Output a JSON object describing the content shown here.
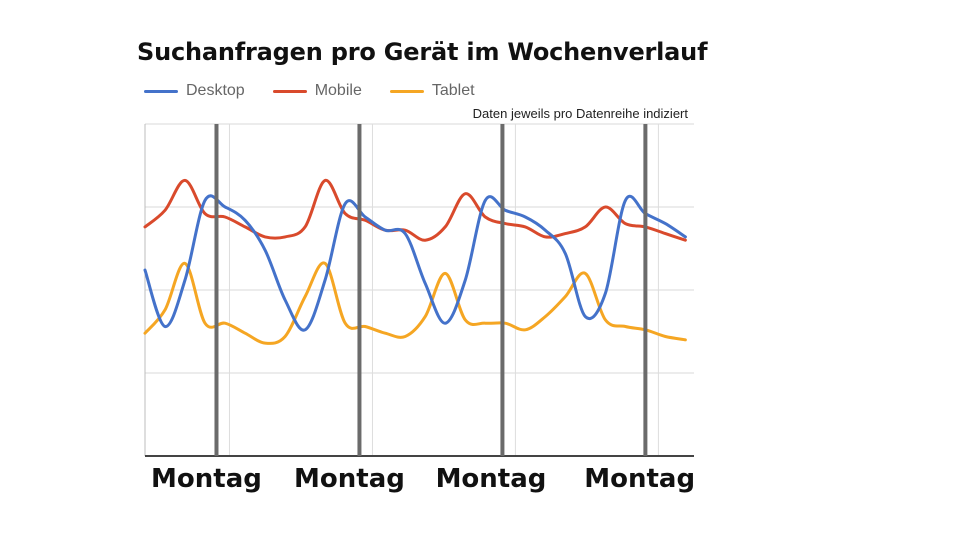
{
  "chart_data": {
    "type": "line",
    "title": "Suchanfragen pro Gerät im Wochenverlauf",
    "note": "Daten jeweils pro Datenreihe indiziert",
    "legend_position": "top-left",
    "grid": true,
    "ylim": [
      0,
      100
    ],
    "week_markers": [
      1.0,
      2.0,
      3.0,
      4.0
    ],
    "x_tick_labels": [
      {
        "x": 0.93,
        "label": "Montag"
      },
      {
        "x": 1.93,
        "label": "Montag"
      },
      {
        "x": 2.92,
        "label": "Montag"
      },
      {
        "x": 3.96,
        "label": "Montag"
      }
    ],
    "x": [
      0.5,
      0.64,
      0.78,
      0.92,
      1.06,
      1.2,
      1.34,
      1.48,
      1.62,
      1.76,
      1.9,
      2.04,
      2.18,
      2.32,
      2.46,
      2.6,
      2.74,
      2.88,
      3.02,
      3.16,
      3.3,
      3.44,
      3.58,
      3.72,
      3.86,
      4.0,
      4.14,
      4.28,
      4.42,
      4.56,
      4.34
    ],
    "series": [
      {
        "name": "Desktop",
        "color": "#4472CA",
        "values": [
          56,
          39,
          53,
          77,
          75,
          71,
          62,
          47,
          38,
          53,
          76,
          72,
          68,
          67,
          52,
          40,
          53,
          77,
          74,
          72,
          68,
          61,
          42,
          49,
          77,
          73,
          70,
          66,
          66,
          66,
          68
        ]
      },
      {
        "name": "Mobile",
        "color": "#D94A2C",
        "values": [
          69,
          74,
          83,
          73,
          72,
          69,
          66,
          66,
          69,
          83,
          73,
          71,
          68,
          68,
          65,
          69,
          79,
          72,
          70,
          69,
          66,
          67,
          69,
          75,
          70,
          69,
          67,
          65,
          65,
          65,
          66
        ]
      },
      {
        "name": "Tablet",
        "color": "#F5A623",
        "values": [
          37,
          44,
          58,
          40,
          40,
          37,
          34,
          36,
          48,
          58,
          40,
          39,
          37,
          36,
          42,
          55,
          41,
          40,
          40,
          38,
          42,
          48,
          55,
          41,
          39,
          38,
          36,
          35,
          35,
          35,
          35
        ]
      }
    ]
  }
}
